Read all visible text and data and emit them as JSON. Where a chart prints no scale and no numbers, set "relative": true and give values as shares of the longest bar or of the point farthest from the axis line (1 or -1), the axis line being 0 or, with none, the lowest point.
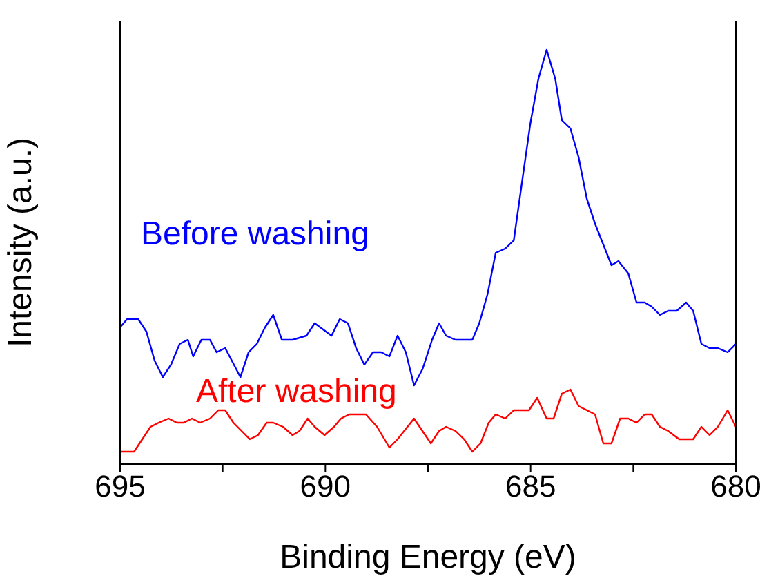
{
  "chart_data": {
    "type": "line",
    "relative": true,
    "xlabel": "Binding Energy (eV)",
    "ylabel": "Intensity (a.u.)",
    "xlim": [
      695,
      680
    ],
    "xticks": [
      695,
      {
        "value": 692.5,
        "label": null
      },
      690,
      {
        "value": 687.5,
        "label": null
      },
      685,
      {
        "value": 682.5,
        "label": null
      },
      680
    ],
    "marker": "none",
    "line_style": "solid",
    "series": [
      {
        "name": "Before washing",
        "color": "#0000ff",
        "x": [
          695.0,
          694.83,
          694.56,
          694.36,
          694.16,
          693.96,
          693.76,
          693.55,
          693.35,
          693.22,
          693.02,
          692.81,
          692.65,
          692.44,
          692.28,
          692.07,
          691.87,
          691.67,
          691.47,
          691.27,
          691.06,
          690.8,
          690.46,
          690.26,
          689.85,
          689.65,
          689.45,
          689.25,
          689.05,
          688.84,
          688.64,
          688.44,
          688.24,
          688.04,
          687.84,
          687.63,
          687.4,
          687.23,
          687.06,
          686.83,
          686.62,
          686.42,
          686.25,
          686.05,
          685.85,
          685.62,
          685.41,
          685.21,
          685.01,
          684.81,
          684.61,
          684.4,
          684.24,
          684.03,
          683.83,
          683.63,
          683.43,
          683.23,
          683.03,
          682.86,
          682.62,
          682.42,
          682.22,
          682.05,
          681.85,
          681.65,
          681.44,
          681.21,
          681.04,
          680.84,
          680.64,
          680.44,
          680.2,
          680.0
        ],
        "values": [
          0.33,
          0.35,
          0.35,
          0.32,
          0.25,
          0.21,
          0.24,
          0.29,
          0.3,
          0.26,
          0.3,
          0.3,
          0.27,
          0.28,
          0.25,
          0.21,
          0.27,
          0.29,
          0.33,
          0.36,
          0.3,
          0.3,
          0.31,
          0.34,
          0.31,
          0.35,
          0.34,
          0.28,
          0.24,
          0.27,
          0.27,
          0.26,
          0.31,
          0.27,
          0.19,
          0.23,
          0.3,
          0.34,
          0.31,
          0.3,
          0.3,
          0.3,
          0.34,
          0.41,
          0.51,
          0.52,
          0.54,
          0.68,
          0.82,
          0.93,
          1,
          0.93,
          0.83,
          0.81,
          0.74,
          0.64,
          0.58,
          0.53,
          0.48,
          0.49,
          0.46,
          0.39,
          0.39,
          0.38,
          0.36,
          0.37,
          0.37,
          0.39,
          0.37,
          0.29,
          0.28,
          0.28,
          0.27,
          0.29
        ]
      },
      {
        "name": "After washing",
        "color": "#ff0000",
        "x": [
          695.0,
          694.66,
          694.26,
          694.06,
          693.82,
          693.62,
          693.45,
          693.25,
          693.05,
          692.81,
          692.61,
          692.44,
          692.24,
          692.04,
          691.84,
          691.64,
          691.43,
          691.27,
          691.03,
          690.8,
          690.63,
          690.43,
          690.26,
          690.02,
          689.79,
          689.62,
          689.42,
          689.18,
          689.01,
          688.74,
          688.44,
          688.24,
          687.84,
          687.43,
          687.23,
          687.06,
          686.83,
          686.62,
          686.42,
          686.22,
          686.02,
          685.85,
          685.62,
          685.41,
          685.21,
          685.04,
          684.84,
          684.61,
          684.44,
          684.24,
          684.03,
          683.83,
          683.63,
          683.43,
          683.23,
          683.03,
          682.82,
          682.62,
          682.42,
          682.22,
          682.05,
          681.85,
          681.65,
          681.38,
          681.21,
          681.04,
          680.84,
          680.64,
          680.44,
          680.2,
          680.0
        ],
        "values": [
          0.03,
          0.03,
          0.09,
          0.1,
          0.11,
          0.1,
          0.1,
          0.11,
          0.1,
          0.11,
          0.13,
          0.13,
          0.1,
          0.08,
          0.06,
          0.07,
          0.1,
          0.1,
          0.09,
          0.07,
          0.08,
          0.11,
          0.09,
          0.07,
          0.09,
          0.11,
          0.12,
          0.12,
          0.12,
          0.09,
          0.04,
          0.06,
          0.11,
          0.05,
          0.08,
          0.09,
          0.08,
          0.06,
          0.03,
          0.05,
          0.1,
          0.12,
          0.11,
          0.13,
          0.13,
          0.13,
          0.16,
          0.11,
          0.11,
          0.17,
          0.18,
          0.14,
          0.13,
          0.12,
          0.05,
          0.05,
          0.11,
          0.11,
          0.1,
          0.12,
          0.12,
          0.09,
          0.08,
          0.06,
          0.06,
          0.06,
          0.09,
          0.07,
          0.09,
          0.13,
          0.09
        ]
      }
    ]
  }
}
